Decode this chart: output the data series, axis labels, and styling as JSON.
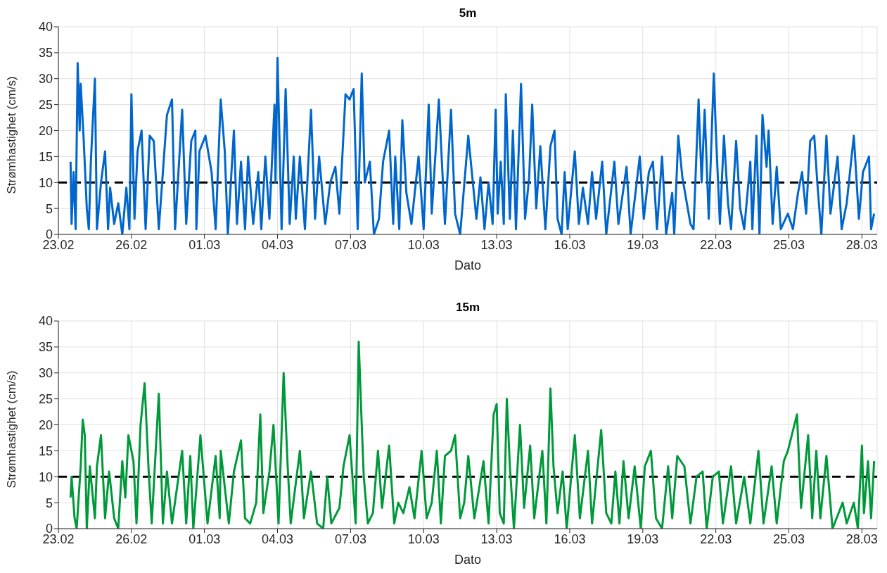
{
  "chart_data": [
    {
      "type": "line",
      "title": "5m",
      "xlabel": "Dato",
      "ylabel": "Strømhastighet (cm/s)",
      "grid": true,
      "xlim": [
        "--02-23",
        "--03-28T15:00"
      ],
      "xticks": [
        {
          "value": "--02-23",
          "label": "23.02"
        },
        {
          "value": "--02-26",
          "label": "26.02"
        },
        {
          "value": "--03-01",
          "label": "01.03"
        },
        {
          "value": "--03-04",
          "label": "04.03"
        },
        {
          "value": "--03-07",
          "label": "07.03"
        },
        {
          "value": "--03-10",
          "label": "10.03"
        },
        {
          "value": "--03-13",
          "label": "13.03"
        },
        {
          "value": "--03-16",
          "label": "16.03"
        },
        {
          "value": "--03-19",
          "label": "19.03"
        },
        {
          "value": "--03-22",
          "label": "22.03"
        },
        {
          "value": "--03-25",
          "label": "25.03"
        },
        {
          "value": "--03-28",
          "label": "28.03"
        }
      ],
      "ylim": [
        0,
        40
      ],
      "yticks": [
        0,
        5,
        10,
        15,
        20,
        25,
        30,
        35,
        40
      ],
      "ref_lines": [
        {
          "axis": "y",
          "value": 10,
          "color": "#000000",
          "line_style": "dashed"
        }
      ],
      "x": [
        "--02-23T12:00",
        "--02-23T13:00",
        "--02-23T15:00",
        "--02-23T17:00",
        "--02-23T19:00",
        "--02-23T21:00",
        "--02-23T22:00",
        "--02-24T01:00",
        "--02-24T04:00",
        "--02-24T06:00",
        "--02-24T08:00",
        "--02-24T12:00",
        "--02-24T14:00",
        "--02-24T18:00",
        "--02-24T22:00",
        "--02-25T01:00",
        "--02-25T03:00",
        "--02-25T07:00",
        "--02-25T11:00",
        "--02-25T15:00",
        "--02-25T19:00",
        "--02-25T22:00",
        "--02-26T00:00",
        "--02-26T03:00",
        "--02-26T06:00",
        "--02-26T10:00",
        "--02-26T14:00",
        "--02-26T18:00",
        "--02-26T22:00",
        "--02-27T03:00",
        "--02-27T11:00",
        "--02-27T16:00",
        "--02-27T19:00",
        "--02-28T02:00",
        "--02-28T06:00",
        "--02-28T11:00",
        "--02-28T15:00",
        "--02-28T16:00",
        "--02-28T19:00",
        "--03-01T01:00",
        "--03-01T07:00",
        "--03-01T11:00",
        "--03-01T16:00",
        "--03-01T20:00",
        "--03-01T23:00",
        "--03-02T05:00",
        "--03-02T08:00",
        "--03-02T12:00",
        "--03-02T16:00",
        "--03-02T19:00",
        "--03-03T00:00",
        "--03-03T05:00",
        "--03-03T08:00",
        "--03-03T12:00",
        "--03-03T16:00",
        "--03-03T21:00",
        "--03-03T22:00",
        "--03-04T00:00",
        "--03-04T04:00",
        "--03-04T08:00",
        "--03-04T12:00",
        "--03-04T16:00",
        "--03-04T18:00",
        "--03-04T22:00",
        "--03-05T03:00",
        "--03-05T09:00",
        "--03-05T13:00",
        "--03-05T17:00",
        "--03-05T23:00",
        "--03-06T04:00",
        "--03-06T09:00",
        "--03-06T13:00",
        "--03-06T19:00",
        "--03-06T23:00",
        "--03-07T03:00",
        "--03-07T07:00",
        "--03-07T11:00",
        "--03-07T14:00",
        "--03-07T19:00",
        "--03-07T23:00",
        "--03-08T04:00",
        "--03-08T08:00",
        "--03-08T14:00",
        "--03-08T18:00",
        "--03-08T20:00",
        "--03-09T00:00",
        "--03-09T03:00",
        "--03-09T07:00",
        "--03-09T12:00",
        "--03-09T19:00",
        "--03-10T00:00",
        "--03-10T05:00",
        "--03-10T08:00",
        "--03-10T15:00",
        "--03-10T21:00",
        "--03-11T03:00",
        "--03-11T07:00",
        "--03-11T12:00",
        "--03-11T20:00",
        "--03-12T04:00",
        "--03-12T08:00",
        "--03-12T12:00",
        "--03-12T16:00",
        "--03-12T20:00",
        "--03-12T23:00",
        "--03-13T01:00",
        "--03-13T04:00",
        "--03-13T07:00",
        "--03-13T09:00",
        "--03-13T13:00",
        "--03-13T16:00",
        "--03-13T19:00",
        "--03-14T00:00",
        "--03-14T04:00",
        "--03-14T08:00",
        "--03-14T11:00",
        "--03-14T15:00",
        "--03-14T19:00",
        "--03-15T00:00",
        "--03-15T05:00",
        "--03-15T09:00",
        "--03-15T12:00",
        "--03-15T16:00",
        "--03-15T19:00",
        "--03-15T22:00",
        "--03-16T05:00",
        "--03-16T09:00",
        "--03-16T13:00",
        "--03-16T18:00",
        "--03-16T22:00",
        "--03-17T02:00",
        "--03-17T08:00",
        "--03-17T12:00",
        "--03-17T20:00",
        "--03-18T00:00",
        "--03-18T08:00",
        "--03-18T12:00",
        "--03-18T21:00",
        "--03-19T01:00",
        "--03-19T06:00",
        "--03-19T10:00",
        "--03-19T14:00",
        "--03-19T19:00",
        "--03-19T23:00",
        "--03-20T05:00",
        "--03-20T07:00",
        "--03-20T11:00",
        "--03-20T15:00",
        "--03-20T23:00",
        "--03-21T02:00",
        "--03-21T07:00",
        "--03-21T10:00",
        "--03-21T13:00",
        "--03-21T17:00",
        "--03-21T22:00",
        "--03-22T00:00",
        "--03-22T04:00",
        "--03-22T08:00",
        "--03-22T12:00",
        "--03-22T15:00",
        "--03-22T20:00",
        "--03-23T00:00",
        "--03-23T04:00",
        "--03-23T10:00",
        "--03-23T12:00",
        "--03-23T16:00",
        "--03-23T19:00",
        "--03-23T22:00",
        "--03-24T02:00",
        "--03-24T04:00",
        "--03-24T08:00",
        "--03-24T12:00",
        "--03-24T16:00",
        "--03-24T23:00",
        "--03-25T04:00",
        "--03-25T09:00",
        "--03-25T13:00",
        "--03-25T17:00",
        "--03-25T21:00",
        "--03-26T01:00",
        "--03-26T04:00",
        "--03-26T08:00",
        "--03-26T13:00",
        "--03-26T17:00",
        "--03-27T00:00",
        "--03-27T04:00",
        "--03-27T09:00",
        "--03-27T16:00",
        "--03-27T21:00",
        "--03-28T01:00",
        "--03-28T07:00",
        "--03-28T09:00",
        "--03-28T12:00"
      ],
      "series": [
        {
          "color": "#0066cc",
          "values": [
            14,
            2,
            12,
            1,
            33,
            20,
            29,
            18,
            5,
            1,
            14,
            30,
            1,
            10,
            16,
            1,
            9,
            2,
            6,
            0,
            9,
            1,
            27,
            3,
            16,
            20,
            1,
            19,
            18,
            1,
            23,
            26,
            1,
            24,
            2,
            18,
            20,
            1,
            16,
            19,
            12,
            1,
            26,
            16,
            0,
            20,
            2,
            14,
            1,
            15,
            2,
            12,
            1,
            15,
            3,
            25,
            10,
            34,
            1,
            28,
            2,
            15,
            3,
            15,
            1,
            24,
            3,
            15,
            2,
            10,
            13,
            4,
            27,
            26,
            28,
            1,
            31,
            10,
            14,
            0,
            3,
            14,
            20,
            2,
            15,
            1,
            22,
            8,
            2,
            15,
            1,
            25,
            4,
            26,
            2,
            24,
            4,
            0,
            19,
            3,
            11,
            1,
            10,
            2,
            24,
            4,
            14,
            2,
            27,
            3,
            20,
            1,
            29,
            3,
            11,
            25,
            5,
            17,
            1,
            17,
            20,
            3,
            0,
            12,
            1,
            16,
            2,
            9,
            2,
            12,
            3,
            14,
            0,
            14,
            2,
            13,
            0,
            15,
            3,
            12,
            14,
            1,
            15,
            0,
            8,
            0,
            19,
            11,
            2,
            1,
            26,
            10,
            24,
            3,
            31,
            20,
            2,
            19,
            6,
            1,
            18,
            5,
            1,
            14,
            1,
            19,
            0,
            23,
            13,
            20,
            2,
            13,
            1,
            4,
            1,
            8,
            12,
            4,
            18,
            19,
            10,
            0,
            19,
            4,
            15,
            1,
            6,
            19,
            3,
            12,
            15,
            1,
            4
          ]
        }
      ]
    },
    {
      "type": "line",
      "title": "15m",
      "xlabel": "Dato",
      "ylabel": "Strømhastighet (cm/s)",
      "grid": true,
      "xlim": [
        "--02-23",
        "--03-28T15:00"
      ],
      "xticks": [
        {
          "value": "--02-23",
          "label": "23.02"
        },
        {
          "value": "--02-26",
          "label": "26.02"
        },
        {
          "value": "--03-01",
          "label": "01.03"
        },
        {
          "value": "--03-04",
          "label": "04.03"
        },
        {
          "value": "--03-07",
          "label": "07.03"
        },
        {
          "value": "--03-10",
          "label": "10.03"
        },
        {
          "value": "--03-13",
          "label": "13.03"
        },
        {
          "value": "--03-16",
          "label": "16.03"
        },
        {
          "value": "--03-19",
          "label": "19.03"
        },
        {
          "value": "--03-22",
          "label": "22.03"
        },
        {
          "value": "--03-25",
          "label": "25.03"
        },
        {
          "value": "--03-28",
          "label": "28.03"
        }
      ],
      "ylim": [
        0,
        40
      ],
      "yticks": [
        0,
        5,
        10,
        15,
        20,
        25,
        30,
        35,
        40
      ],
      "ref_lines": [
        {
          "axis": "y",
          "value": 10,
          "color": "#000000",
          "line_style": "dashed"
        }
      ],
      "x": [
        "--02-23T12:00",
        "--02-23T13:00",
        "--02-23T16:00",
        "--02-23T18:00",
        "--02-23T22:00",
        "--02-24T00:00",
        "--02-24T02:00",
        "--02-24T04:00",
        "--02-24T07:00",
        "--02-24T12:00",
        "--02-24T14:00",
        "--02-24T18:00",
        "--02-24T22:00",
        "--02-25T02:00",
        "--02-25T07:00",
        "--02-25T11:00",
        "--02-25T15:00",
        "--02-25T18:00",
        "--02-25T21:00",
        "--02-26T02:00",
        "--02-26T05:00",
        "--02-26T09:00",
        "--02-26T13:00",
        "--02-26T17:00",
        "--02-26T20:00",
        "--02-27T03:00",
        "--02-27T07:00",
        "--02-27T11:00",
        "--02-27T16:00",
        "--02-28T02:00",
        "--02-28T06:00",
        "--02-28T10:00",
        "--02-28T13:00",
        "--02-28T20:00",
        "--03-01T03:00",
        "--03-01T11:00",
        "--03-01T15:00",
        "--03-01T16:00",
        "--03-02T00:00",
        "--03-02T05:00",
        "--03-02T12:00",
        "--03-02T16:00",
        "--03-02T21:00",
        "--03-03T03:00",
        "--03-03T07:00",
        "--03-03T10:00",
        "--03-03T16:00",
        "--03-03T20:00",
        "--03-04T01:00",
        "--03-04T06:00",
        "--03-04T10:00",
        "--03-04T13:00",
        "--03-04T22:00",
        "--03-05T02:00",
        "--03-05T09:00",
        "--03-05T15:00",
        "--03-05T21:00",
        "--03-06T01:00",
        "--03-06T05:00",
        "--03-06T13:00",
        "--03-06T17:00",
        "--03-06T23:00",
        "--03-07T05:00",
        "--03-07T08:00",
        "--03-07T11:00",
        "--03-07T13:00",
        "--03-07T17:00",
        "--03-07T22:00",
        "--03-08T03:00",
        "--03-08T07:00",
        "--03-08T14:00",
        "--03-08T19:00",
        "--03-08T23:00",
        "--03-09T04:00",
        "--03-09T10:00",
        "--03-09T15:00",
        "--03-09T22:00",
        "--03-10T03:00",
        "--03-10T08:00",
        "--03-10T13:00",
        "--03-10T17:00",
        "--03-10T21:00",
        "--03-11T03:00",
        "--03-11T07:00",
        "--03-11T12:00",
        "--03-11T16:00",
        "--03-11T20:00",
        "--03-12T02:00",
        "--03-12T11:00",
        "--03-12T16:00",
        "--03-12T21:00",
        "--03-13T00:00",
        "--03-13T03:00",
        "--03-13T07:00",
        "--03-13T10:00",
        "--03-13T13:00",
        "--03-13T17:00",
        "--03-13T23:00",
        "--03-14T03:00",
        "--03-14T09:00",
        "--03-14T13:00",
        "--03-14T21:00",
        "--03-15T01:00",
        "--03-15T05:00",
        "--03-15T08:00",
        "--03-15T12:00",
        "--03-15T17:00",
        "--03-15T21:00",
        "--03-16T05:00",
        "--03-16T10:00",
        "--03-16T18:00",
        "--03-16T22:00",
        "--03-17T07:00",
        "--03-17T12:00",
        "--03-17T17:00",
        "--03-17T21:00",
        "--03-18T01:00",
        "--03-18T05:00",
        "--03-18T10:00",
        "--03-18T16:00",
        "--03-18T22:00",
        "--03-19T02:00",
        "--03-19T08:00",
        "--03-19T13:00",
        "--03-19T19:00",
        "--03-20T01:00",
        "--03-20T05:00",
        "--03-20T10:00",
        "--03-20T17:00",
        "--03-20T23:00",
        "--03-21T05:00",
        "--03-21T11:00",
        "--03-21T15:00",
        "--03-21T21:00",
        "--03-22T03:00",
        "--03-22T07:00",
        "--03-22T15:00",
        "--03-22T20:00",
        "--03-23T04:00",
        "--03-23T10:00",
        "--03-23T18:00",
        "--03-23T23:00",
        "--03-24T07:00",
        "--03-24T12:00",
        "--03-24T19:00",
        "--03-24T23:00",
        "--03-25T08:00",
        "--03-25T12:00",
        "--03-25T19:00",
        "--03-25T23:00",
        "--03-26T03:00",
        "--03-26T07:00",
        "--03-26T13:00",
        "--03-26T19:00",
        "--03-26T23:00",
        "--03-27T05:00",
        "--03-27T09:00",
        "--03-27T16:00",
        "--03-27T20:00",
        "--03-28T00:00",
        "--03-28T02:00",
        "--03-28T06:00",
        "--03-28T09:00",
        "--03-28T12:00"
      ],
      "series": [
        {
          "color": "#00993a",
          "values": [
            6,
            10,
            2,
            0,
            12,
            21,
            18,
            0,
            12,
            2,
            12,
            18,
            2,
            11,
            2,
            0,
            13,
            6,
            18,
            13,
            1,
            20,
            28,
            11,
            1,
            26,
            1,
            11,
            1,
            15,
            1,
            14,
            0,
            18,
            1,
            14,
            2,
            15,
            1,
            11,
            17,
            2,
            1,
            5,
            22,
            3,
            11,
            20,
            1,
            30,
            12,
            1,
            15,
            2,
            11,
            1,
            0,
            10,
            1,
            4,
            12,
            18,
            1,
            36,
            20,
            10,
            1,
            3,
            15,
            4,
            16,
            1,
            5,
            3,
            8,
            2,
            15,
            2,
            5,
            15,
            1,
            14,
            15,
            18,
            2,
            5,
            14,
            2,
            13,
            1,
            22,
            24,
            3,
            1,
            25,
            12,
            0,
            20,
            4,
            16,
            2,
            15,
            1,
            27,
            12,
            3,
            11,
            0,
            18,
            2,
            15,
            1,
            19,
            3,
            1,
            11,
            1,
            13,
            2,
            12,
            0,
            12,
            15,
            2,
            0,
            12,
            2,
            14,
            12,
            1,
            10,
            11,
            0,
            10,
            11,
            1,
            12,
            1,
            10,
            1,
            15,
            1,
            12,
            1,
            13,
            15,
            22,
            4,
            18,
            2,
            15,
            2,
            14,
            0,
            2,
            5,
            1,
            5,
            0,
            16,
            3,
            13,
            2,
            13
          ]
        }
      ]
    }
  ]
}
